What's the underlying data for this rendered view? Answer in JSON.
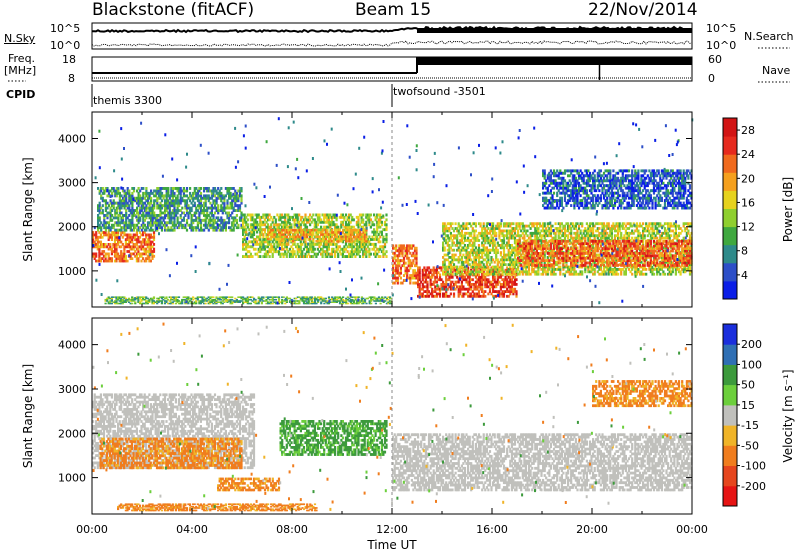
{
  "header": {
    "station": "Blackstone (fitACF)",
    "beam": "Beam 15",
    "date": "22/Nov/2014"
  },
  "left_labels": {
    "nsky": "N.Sky",
    "freq": "Freq.",
    "freq_unit": "[MHz]",
    "cpid": "CPID"
  },
  "right_labels": {
    "nsearch": "N.Search",
    "nave": "Nave"
  },
  "noise_panel": {
    "left_ticks": [
      "10^5",
      "10^0"
    ],
    "right_ticks": [
      "10^5",
      "10^0"
    ]
  },
  "freq_panel": {
    "left_ticks": [
      "18",
      "8"
    ],
    "right_ticks": [
      "60",
      "0"
    ]
  },
  "cpid_panel": {
    "programs": [
      {
        "name": "themis 3300",
        "start_hour": 0
      },
      {
        "name": "twofsound -3501",
        "start_hour": 12.0
      }
    ]
  },
  "chart_data": [
    {
      "type": "heatmap",
      "panel": "power",
      "ylabel": "Slant Range [km]",
      "xlabel": "",
      "ylim": [
        180,
        4600
      ],
      "y_ticks": [
        "1000",
        "2000",
        "3000",
        "4000"
      ],
      "colorbar": {
        "label": "Power [dB]",
        "ticks": [
          "4",
          "8",
          "12",
          "16",
          "20",
          "24",
          "28"
        ],
        "range": [
          0,
          30
        ],
        "colors": [
          "#0a1ee6",
          "#2d4fc8",
          "#2e8a8a",
          "#3fa83f",
          "#8fcf2f",
          "#e6d21e",
          "#f5a01e",
          "#f06a1e",
          "#e62a1e",
          "#d21414"
        ]
      },
      "bands": [
        {
          "x": [
            0.0,
            2.5
          ],
          "y": [
            1200,
            1900
          ],
          "value": 22
        },
        {
          "x": [
            0.2,
            6.0
          ],
          "y": [
            1900,
            2900
          ],
          "value": 9
        },
        {
          "x": [
            6.0,
            11.8
          ],
          "y": [
            1300,
            2300
          ],
          "value": 14
        },
        {
          "x": [
            7.0,
            11.0
          ],
          "y": [
            1650,
            1950
          ],
          "value": 19
        },
        {
          "x": [
            0.5,
            12.0
          ],
          "y": [
            250,
            420
          ],
          "value": 11
        },
        {
          "x": [
            12.0,
            13.0
          ],
          "y": [
            700,
            1600
          ],
          "value": 22
        },
        {
          "x": [
            13.0,
            17.0
          ],
          "y": [
            400,
            1100
          ],
          "value": 25
        },
        {
          "x": [
            14.0,
            24.0
          ],
          "y": [
            900,
            2100
          ],
          "value": 15
        },
        {
          "x": [
            17.0,
            24.0
          ],
          "y": [
            1100,
            1700
          ],
          "value": 23
        },
        {
          "x": [
            18.0,
            24.0
          ],
          "y": [
            2400,
            3300
          ],
          "value": 5
        }
      ]
    },
    {
      "type": "heatmap",
      "panel": "velocity",
      "ylabel": "Slant Range [km]",
      "xlabel": "Time UT",
      "ylim": [
        180,
        4600
      ],
      "y_ticks": [
        "1000",
        "2000",
        "3000",
        "4000"
      ],
      "x_ticks": [
        "00:00",
        "04:00",
        "08:00",
        "12:00",
        "16:00",
        "20:00",
        "00:00"
      ],
      "xlim": [
        0,
        24
      ],
      "colorbar": {
        "label": "Velocity [m s⁻¹]",
        "ticks": [
          "200",
          "100",
          "50",
          "15",
          "-15",
          "-50",
          "-100",
          "-200"
        ],
        "colors": [
          "#1a2edc",
          "#2f6fb4",
          "#3c9a3c",
          "#6ccf3c",
          "#c0c0bc",
          "#f0b428",
          "#f07d1e",
          "#e6461e",
          "#e61414"
        ]
      },
      "bands": [
        {
          "x": [
            0.0,
            6.5
          ],
          "y": [
            1200,
            2900
          ],
          "value": 0
        },
        {
          "x": [
            0.3,
            6.0
          ],
          "y": [
            1200,
            1900
          ],
          "value": -40
        },
        {
          "x": [
            5.0,
            7.5
          ],
          "y": [
            700,
            1000
          ],
          "value": -40
        },
        {
          "x": [
            7.5,
            11.8
          ],
          "y": [
            1500,
            2300
          ],
          "value": 40
        },
        {
          "x": [
            1.0,
            9.0
          ],
          "y": [
            250,
            420
          ],
          "value": -40
        },
        {
          "x": [
            12.0,
            24.0
          ],
          "y": [
            700,
            2000
          ],
          "value": 0
        },
        {
          "x": [
            20.0,
            24.0
          ],
          "y": [
            2600,
            3200
          ],
          "value": -40
        }
      ]
    }
  ]
}
